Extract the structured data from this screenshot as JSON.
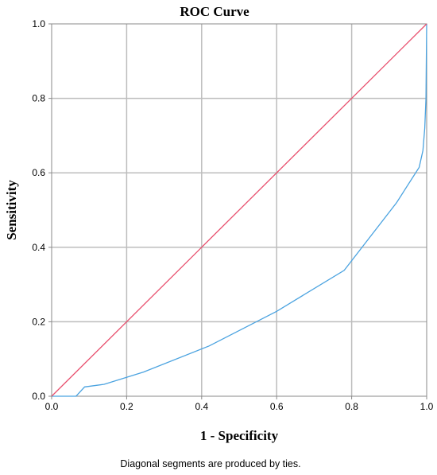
{
  "chart_data": {
    "type": "line",
    "title": "ROC Curve",
    "xlabel": "1 - Specificity",
    "ylabel": "Sensitivity",
    "xlim": [
      0.0,
      1.0
    ],
    "ylim": [
      0.0,
      1.0
    ],
    "x_ticks": [
      "0.0",
      "0.2",
      "0.4",
      "0.6",
      "0.8",
      "1.0"
    ],
    "y_ticks": [
      "0.0",
      "0.2",
      "0.4",
      "0.6",
      "0.8",
      "1.0"
    ],
    "grid": true,
    "legend": "none",
    "footnote": "Diagonal segments are produced by ties.",
    "series": [
      {
        "color": "#4ba3e0",
        "x": [
          0.0,
          0.065,
          0.088,
          0.14,
          0.245,
          0.42,
          0.6,
          0.78,
          0.92,
          0.98,
          0.99,
          0.995,
          0.998,
          1.0
        ],
        "y": [
          0.0,
          0.0,
          0.025,
          0.032,
          0.065,
          0.135,
          0.228,
          0.338,
          0.52,
          0.615,
          0.66,
          0.72,
          0.8,
          1.0
        ]
      },
      {
        "color": "#e8506e",
        "x": [
          0.0,
          1.0
        ],
        "y": [
          0.0,
          1.0
        ]
      }
    ]
  }
}
